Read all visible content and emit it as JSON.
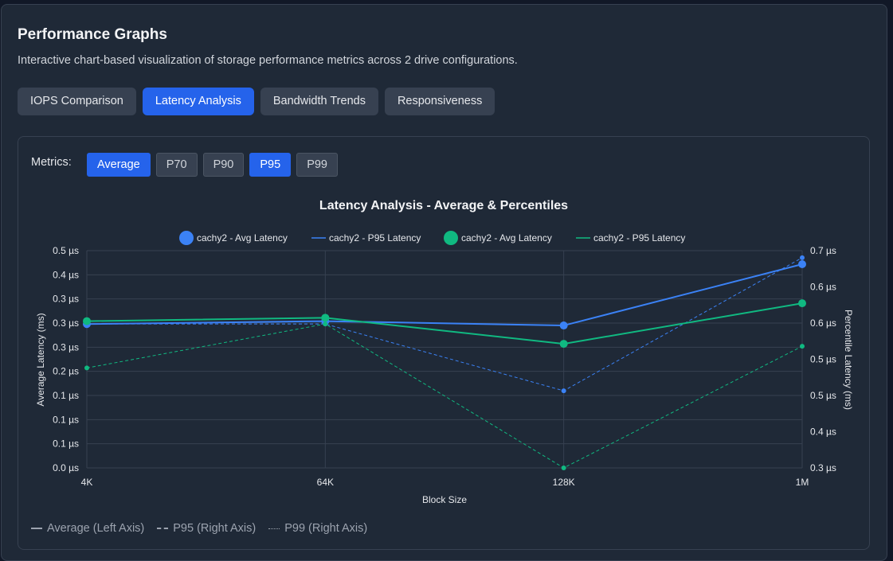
{
  "header": {
    "title": "Performance Graphs",
    "subtitle": "Interactive chart-based visualization of storage performance metrics across 2 drive configurations."
  },
  "tabs": [
    {
      "label": "IOPS Comparison",
      "active": false
    },
    {
      "label": "Latency Analysis",
      "active": true
    },
    {
      "label": "Bandwidth Trends",
      "active": false
    },
    {
      "label": "Responsiveness",
      "active": false
    }
  ],
  "metrics": {
    "label": "Metrics:",
    "options": [
      {
        "label": "Average",
        "active": true
      },
      {
        "label": "P70",
        "active": false
      },
      {
        "label": "P90",
        "active": false
      },
      {
        "label": "P95",
        "active": true
      },
      {
        "label": "P99",
        "active": false
      }
    ]
  },
  "chart_data": {
    "type": "line",
    "title": "Latency Analysis - Average & Percentiles",
    "xlabel": "Block Size",
    "ylabel_left": "Average Latency (ms)",
    "ylabel_right": "Percentile Latency (ms)",
    "categories": [
      "4K",
      "64K",
      "128K",
      "1M"
    ],
    "y_left_range": [
      0.0,
      0.45
    ],
    "y_right_range": [
      0.3,
      0.7
    ],
    "y_left_ticks": [
      "0.5 µs",
      "0.4 µs",
      "0.3 µs",
      "0.3 µs",
      "0.3 µs",
      "0.2 µs",
      "0.1 µs",
      "0.1 µs",
      "0.1 µs",
      "0.0 µs"
    ],
    "y_right_ticks": [
      "0.7 µs",
      "0.6 µs",
      "0.6 µs",
      "0.5 µs",
      "0.5 µs",
      "0.4 µs",
      "0.3 µs"
    ],
    "grid": true,
    "legend_position": "top",
    "series": [
      {
        "name": "cachy2 - Avg Latency",
        "axis": "left",
        "style": "solid",
        "marker": "circle",
        "color": "#3b82f6",
        "values": [
          0.298,
          0.304,
          0.295,
          0.422
        ]
      },
      {
        "name": "cachy2 - P95 Latency",
        "axis": "right",
        "style": "dashed",
        "marker": "small",
        "color": "#3b82f6",
        "values": [
          0.565,
          0.565,
          0.442,
          0.687
        ]
      },
      {
        "name": "cachy2 - Avg Latency",
        "axis": "left",
        "style": "solid",
        "marker": "circle",
        "color": "#10b981",
        "values": [
          0.304,
          0.311,
          0.257,
          0.341
        ]
      },
      {
        "name": "cachy2 - P95 Latency",
        "axis": "right",
        "style": "dashed",
        "marker": "small",
        "color": "#10b981",
        "values": [
          0.484,
          0.565,
          0.3,
          0.524
        ]
      }
    ]
  },
  "bottom_legend": [
    {
      "label": "Average (Left Axis)",
      "style": "solid"
    },
    {
      "label": "P95 (Right Axis)",
      "style": "dashed"
    },
    {
      "label": "P99 (Right Axis)",
      "style": "dotted"
    }
  ]
}
